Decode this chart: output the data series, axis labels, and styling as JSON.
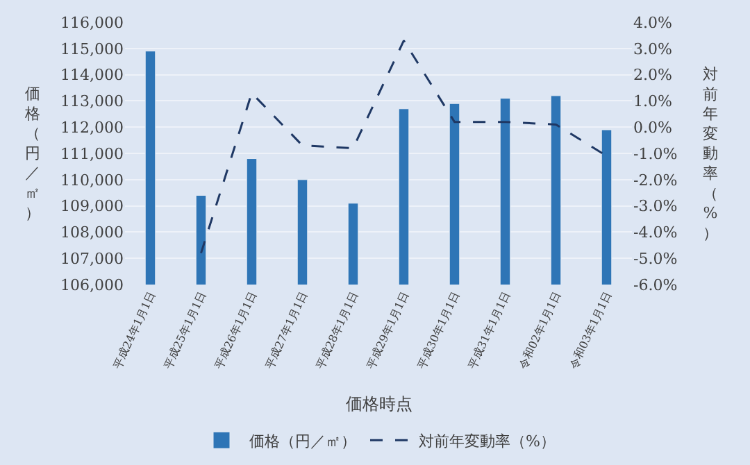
{
  "chart_data": {
    "type": "bar",
    "categories": [
      "平成24年1月1日",
      "平成25年1月1日",
      "平成26年1月1日",
      "平成27年1月1日",
      "平成28年1月1日",
      "平成29年1月1日",
      "平成30年1月1日",
      "平成31年1月1日",
      "令和02年1月1日",
      "令和03年1月1日"
    ],
    "series": [
      {
        "name": "価格（円／㎡）",
        "color": "#2e75b6",
        "values": [
          114900,
          109400,
          110800,
          110000,
          109100,
          112700,
          112900,
          113100,
          113200,
          111900
        ]
      },
      {
        "name": "対前年変動率（%）",
        "type": "line",
        "axis": "y2",
        "color": "#1f3864",
        "line_style": "dashed",
        "marker": "none",
        "values": [
          null,
          -4.8,
          1.3,
          -0.7,
          -0.8,
          3.3,
          0.2,
          0.2,
          0.1,
          -1.1
        ]
      }
    ],
    "xlabel": "価格時点",
    "ylabel": "価格（円／㎡）",
    "y2label": "対前年変動率（%）",
    "ylim": [
      106000,
      116000
    ],
    "yticks": [
      {
        "value": 106000,
        "label": "106,000"
      },
      {
        "value": 107000,
        "label": "107,000"
      },
      {
        "value": 108000,
        "label": "108,000"
      },
      {
        "value": 109000,
        "label": "109,000"
      },
      {
        "value": 110000,
        "label": "110,000"
      },
      {
        "value": 111000,
        "label": "111,000"
      },
      {
        "value": 112000,
        "label": "112,000"
      },
      {
        "value": 113000,
        "label": "113,000"
      },
      {
        "value": 114000,
        "label": "114,000"
      },
      {
        "value": 115000,
        "label": "115,000"
      },
      {
        "value": 116000,
        "label": "116,000"
      }
    ],
    "y2lim": [
      -6,
      4
    ],
    "y2ticks": [
      {
        "value": -6,
        "label": "-6.0%"
      },
      {
        "value": -5,
        "label": "-5.0%"
      },
      {
        "value": -4,
        "label": "-4.0%"
      },
      {
        "value": -3,
        "label": "-3.0%"
      },
      {
        "value": -2,
        "label": "-2.0%"
      },
      {
        "value": -1,
        "label": "-1.0%"
      },
      {
        "value": 0,
        "label": "0.0%"
      },
      {
        "value": 1,
        "label": "1.0%"
      },
      {
        "value": 2,
        "label": "2.0%"
      },
      {
        "value": 3,
        "label": "3.0%"
      },
      {
        "value": 4,
        "label": "4.0%"
      }
    ],
    "grid": "y",
    "legend": "bottom"
  }
}
